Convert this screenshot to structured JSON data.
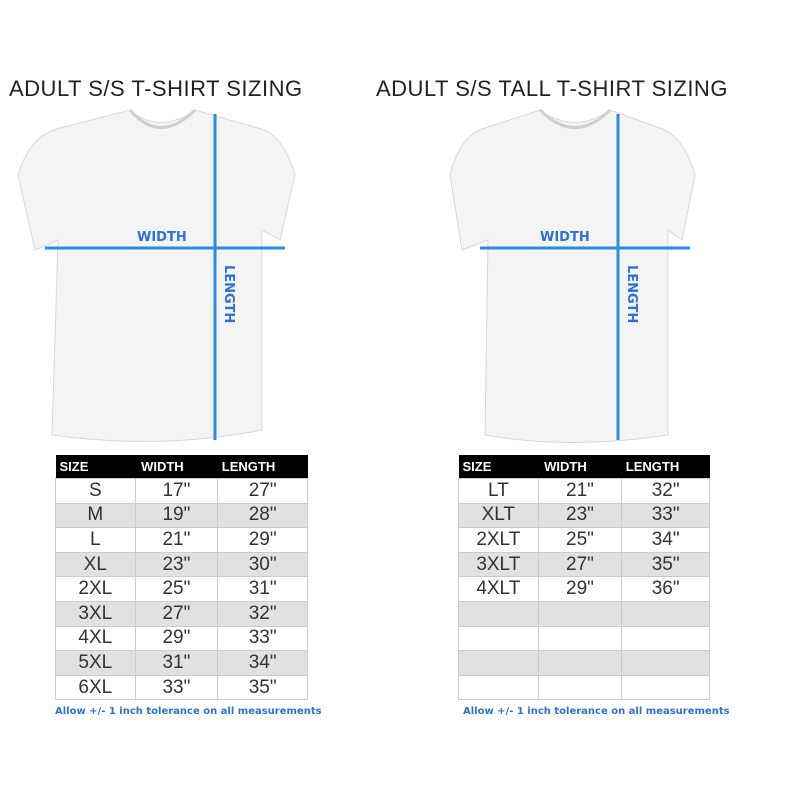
{
  "left": {
    "title": "ADULT S/S T-SHIRT SIZING",
    "width_label": "WIDTH",
    "length_label": "LENGTH",
    "headers": [
      "SIZE",
      "WIDTH",
      "LENGTH"
    ],
    "rows": [
      [
        "S",
        "17\"",
        "27\""
      ],
      [
        "M",
        "19\"",
        "28\""
      ],
      [
        "L",
        "21\"",
        "29\""
      ],
      [
        "XL",
        "23\"",
        "30\""
      ],
      [
        "2XL",
        "25\"",
        "31\""
      ],
      [
        "3XL",
        "27\"",
        "32\""
      ],
      [
        "4XL",
        "29\"",
        "33\""
      ],
      [
        "5XL",
        "31\"",
        "34\""
      ],
      [
        "6XL",
        "33\"",
        "35\""
      ]
    ],
    "note": "Allow +/- 1 inch tolerance on all measurements"
  },
  "right": {
    "title": "ADULT S/S TALL T-SHIRT SIZING",
    "width_label": "WIDTH",
    "length_label": "LENGTH",
    "headers": [
      "SIZE",
      "WIDTH",
      "LENGTH"
    ],
    "rows": [
      [
        "LT",
        "21\"",
        "32\""
      ],
      [
        "XLT",
        "23\"",
        "33\""
      ],
      [
        "2XLT",
        "25\"",
        "34\""
      ],
      [
        "3XLT",
        "27\"",
        "35\""
      ],
      [
        "4XLT",
        "29\"",
        "36\""
      ],
      [
        "",
        "",
        ""
      ],
      [
        "",
        "",
        ""
      ],
      [
        "",
        "",
        ""
      ],
      [
        "",
        "",
        ""
      ]
    ],
    "note": "Allow +/- 1 inch tolerance on all measurements"
  },
  "colors": {
    "accent": "#2a73d6",
    "header_bg": "#000000",
    "stripe": "#e1e1e1"
  }
}
